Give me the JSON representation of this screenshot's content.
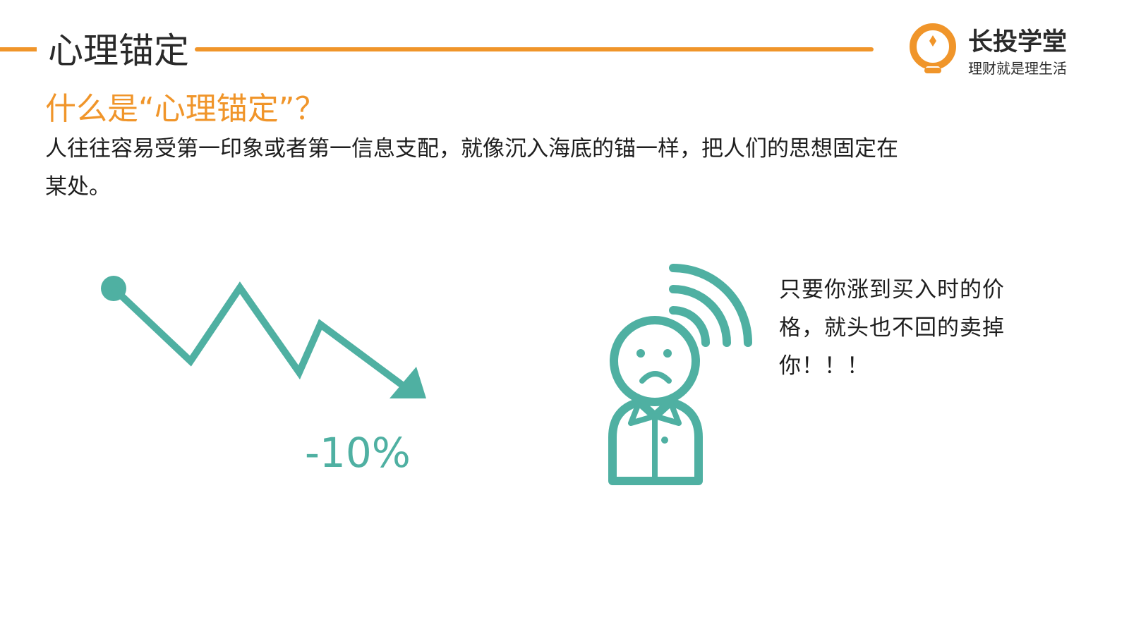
{
  "header": {
    "title": "心理锚定"
  },
  "brand": {
    "name": "长投学堂",
    "slogan": "理财就是理生活"
  },
  "content": {
    "question": "什么是“心理锚定”？",
    "intro": "人往往容易受第一印象或者第一信息支配，就像沉入海底的锚一样，把人们的思想固定在某处。",
    "percent_label": "-10%",
    "quote": "只要你涨到买入时的价格，就头也不回的卖掉你！！！"
  },
  "colors": {
    "accent": "#f0952a",
    "teal": "#4fb0a2",
    "text": "#1e1e1e"
  },
  "icons": [
    "bulb-logo-icon",
    "downtrend-arrow-icon",
    "sad-person-icon",
    "signal-waves-icon"
  ]
}
